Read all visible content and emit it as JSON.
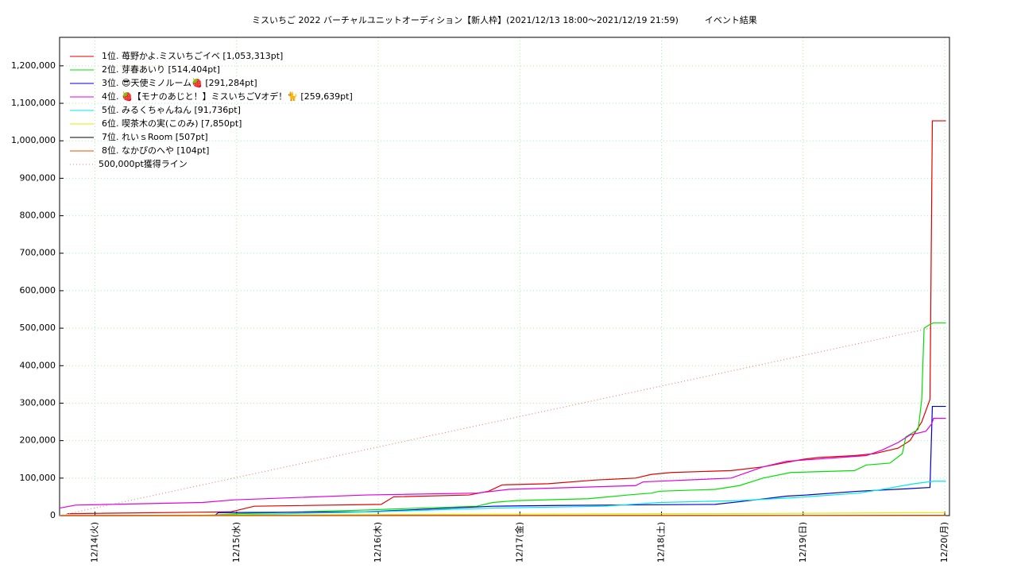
{
  "chart_data": {
    "type": "line",
    "title": "ミスいちご 2022 バーチャルユニットオーディション【新人枠】(2021/12/13 18:00～2021/12/19 21:59)　　　イベント結果",
    "xlim": [
      0,
      150.8
    ],
    "xticks": [
      {
        "value": 6,
        "label": "12/14(火)"
      },
      {
        "value": 30,
        "label": "12/15(水)"
      },
      {
        "value": 54,
        "label": "12/16(木)"
      },
      {
        "value": 78,
        "label": "12/17(金)"
      },
      {
        "value": 102,
        "label": "12/18(土)"
      },
      {
        "value": 126,
        "label": "12/19(日)"
      },
      {
        "value": 150,
        "label": "12/20(月)"
      }
    ],
    "ylim": [
      0,
      1276000
    ],
    "yticks": [
      0,
      {
        "value": 100000,
        "label": "100,000"
      },
      {
        "value": 200000,
        "label": "200,000"
      },
      {
        "value": 300000,
        "label": "300,000"
      },
      {
        "value": 400000,
        "label": "400,000"
      },
      {
        "value": 500000,
        "label": "500,000"
      },
      {
        "value": 600000,
        "label": "600,000"
      },
      {
        "value": 700000,
        "label": "700,000"
      },
      {
        "value": 800000,
        "label": "800,000"
      },
      {
        "value": 900000,
        "label": "900,000"
      },
      {
        "value": 1000000,
        "label": "1,000,000"
      },
      {
        "value": 1100000,
        "label": "1,100,000"
      },
      {
        "value": 1200000,
        "label": "1,200,000"
      }
    ],
    "grid": true,
    "legend": "upper left",
    "series": [
      {
        "name": "1位. 苺野かよ.ミスいちごイベ [1,053,313pt]",
        "color": "#e00000",
        "x": [
          1.3,
          29.0,
          33.0,
          54.5,
          56.6,
          69.4,
          72.7,
          75.0,
          82.8,
          90.9,
          97.6,
          100.3,
          103.7,
          113.8,
          119.2,
          122.6,
          125.9,
          128.6,
          134.7,
          138.0,
          142.1,
          144.1,
          146.1,
          147.5,
          147.9,
          150.2
        ],
        "values": [
          5000,
          10000,
          25000,
          30000,
          50000,
          55000,
          65000,
          82000,
          85000,
          95000,
          100000,
          110000,
          115000,
          120000,
          130000,
          140000,
          150000,
          155000,
          160000,
          165000,
          180000,
          200000,
          250000,
          310000,
          1053313,
          1053313
        ]
      },
      {
        "name": "2位. 芽春あいり [514,404pt]",
        "color": "#00e000",
        "x": [
          23.6,
          30.3,
          51.9,
          61.3,
          70.7,
          73.4,
          77.4,
          89.6,
          96.3,
          100.3,
          101.7,
          111.1,
          115.2,
          119.2,
          123.9,
          134.7,
          136.7,
          140.7,
          142.8,
          143.4,
          145.5,
          146.1,
          146.5,
          147.5,
          148.1,
          150.2
        ],
        "values": [
          0,
          5000,
          15000,
          20000,
          25000,
          35000,
          40000,
          45000,
          55000,
          60000,
          65000,
          70000,
          80000,
          100000,
          115000,
          120000,
          135000,
          140000,
          165000,
          210000,
          230000,
          310000,
          500000,
          510000,
          514404,
          514404
        ]
      },
      {
        "name": "3位. 😎天使ミノルーム🍓 [291,284pt]",
        "color": "#0000d0",
        "x": [
          26.3,
          26.9,
          51.9,
          73.4,
          84.2,
          111.1,
          115.2,
          123.2,
          126.6,
          135.4,
          144.1,
          147.5,
          147.9,
          150.2
        ],
        "values": [
          0,
          8000,
          10000,
          25000,
          27000,
          30000,
          37000,
          52000,
          55000,
          65000,
          72000,
          75000,
          291284,
          291284
        ]
      },
      {
        "name": "4位. 🍓【モナのあじと！】ミスいちごVオデ！🐈 [259,639pt]",
        "color": "#e000e0",
        "x": [
          0,
          2.7,
          24.2,
          29.6,
          51.9,
          70.7,
          76.1,
          97.6,
          98.9,
          113.8,
          119.2,
          123.2,
          136.7,
          139.4,
          142.1,
          144.1,
          146.8,
          147.8,
          148.1,
          150.2
        ],
        "values": [
          20000,
          28000,
          35000,
          42000,
          55000,
          60000,
          70000,
          80000,
          90000,
          100000,
          130000,
          145000,
          160000,
          175000,
          195000,
          215000,
          225000,
          245000,
          259639,
          259639
        ]
      },
      {
        "name": "5位. みるくちゃんねん [91,736pt]",
        "color": "#00e8e8",
        "x": [
          23.6,
          53.2,
          73.4,
          92.3,
          101.7,
          115.2,
          124.6,
          135.4,
          139.4,
          144.8,
          148.1,
          150.2
        ],
        "values": [
          0,
          10000,
          20000,
          25000,
          35000,
          40000,
          48000,
          60000,
          70000,
          85000,
          91736,
          91736
        ]
      },
      {
        "name": "6位. 喫茶木の実(このみ) [7,850pt]",
        "color": "#e8e800",
        "x": [
          0,
          57.2,
          124.6,
          150.2
        ],
        "values": [
          0,
          3000,
          6000,
          7850
        ]
      },
      {
        "name": "7位. れいｓRoom [507pt]",
        "color": "#000000",
        "x": [
          0,
          150.2
        ],
        "values": [
          0,
          507
        ]
      },
      {
        "name": "8位. なかぴのへや [104pt]",
        "color": "#e05000",
        "x": [
          0,
          150.2
        ],
        "values": [
          0,
          104
        ]
      },
      {
        "name": "500,000pt獲得ライン",
        "color": "#f08080",
        "style": "dotted",
        "x": [
          0,
          147.5
        ],
        "values": [
          0,
          500000
        ]
      }
    ]
  }
}
